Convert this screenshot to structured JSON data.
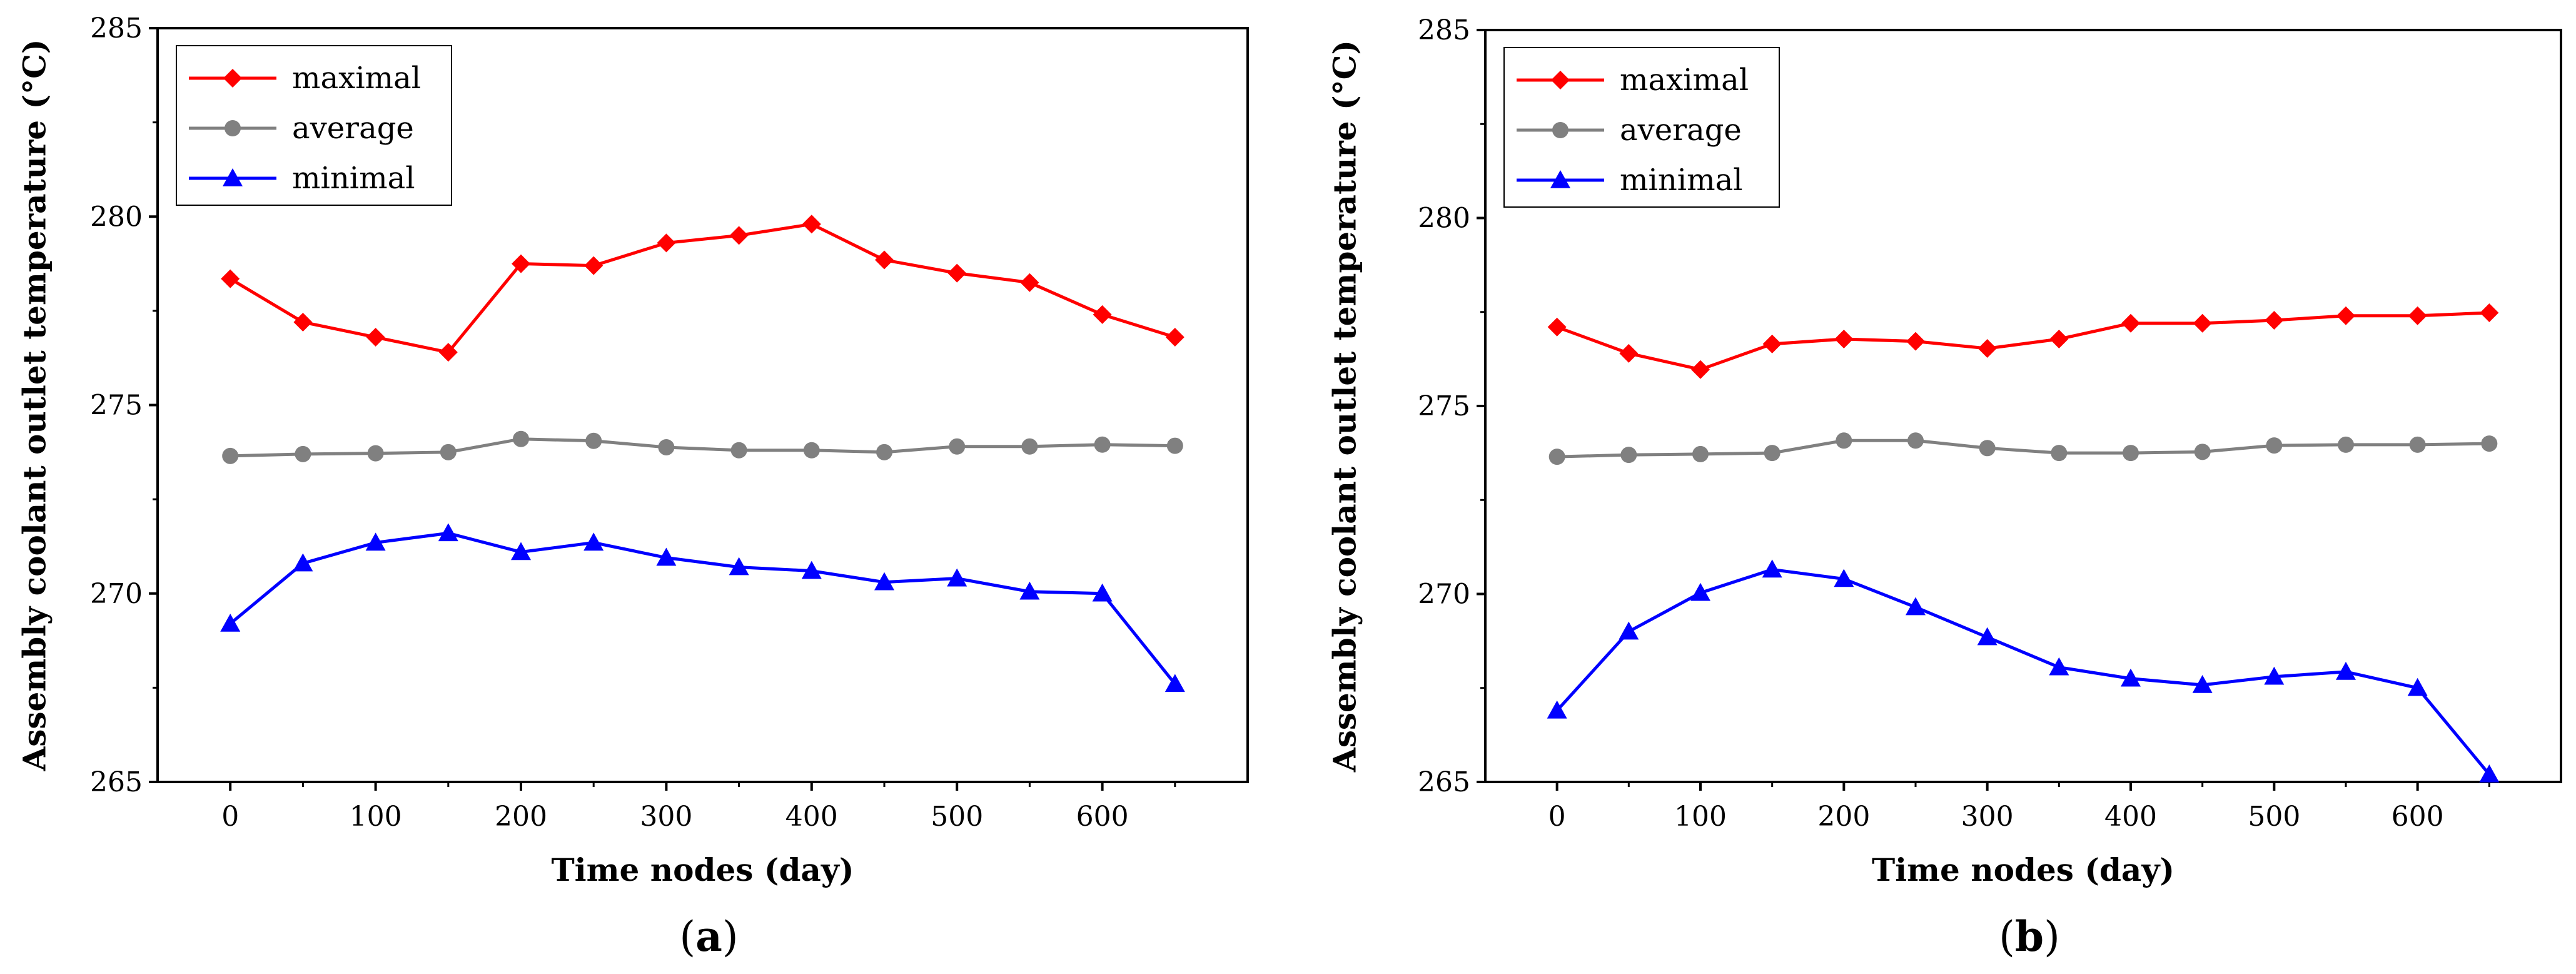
{
  "figure": {
    "panels": [
      "a",
      "b"
    ]
  },
  "chart_data": [
    {
      "type": "line",
      "panel_label": "a",
      "caption_open": "(",
      "caption_close": ")",
      "xlabel": "Time nodes (day)",
      "ylabel": "Assembly coolant outlet temperature (°C)",
      "xlim": [
        -50,
        700
      ],
      "ylim": [
        265,
        285
      ],
      "xticks": [
        0,
        100,
        200,
        300,
        400,
        500,
        600
      ],
      "yticks": [
        265,
        270,
        275,
        280,
        285
      ],
      "x": [
        0,
        50,
        100,
        150,
        200,
        250,
        300,
        350,
        400,
        450,
        500,
        550,
        600,
        650
      ],
      "legend_position": "top-left",
      "series": [
        {
          "name": "maximal",
          "color": "#ff0000",
          "marker": "diamond",
          "values": [
            278.35,
            277.2,
            276.8,
            276.4,
            278.75,
            278.7,
            279.3,
            279.5,
            279.8,
            278.85,
            278.5,
            278.25,
            277.4,
            276.8
          ]
        },
        {
          "name": "average",
          "color": "#808080",
          "marker": "circle",
          "values": [
            273.65,
            273.7,
            273.72,
            273.75,
            274.1,
            274.05,
            273.88,
            273.8,
            273.8,
            273.75,
            273.9,
            273.9,
            273.95,
            273.92
          ]
        },
        {
          "name": "minimal",
          "color": "#0000ff",
          "marker": "triangle",
          "values": [
            269.2,
            270.8,
            271.35,
            271.6,
            271.1,
            271.35,
            270.95,
            270.7,
            270.6,
            270.3,
            270.4,
            270.05,
            270.0,
            267.6
          ]
        }
      ]
    },
    {
      "type": "line",
      "panel_label": "b",
      "caption_open": "(",
      "caption_close": ")",
      "xlabel": "Time nodes (day)",
      "ylabel": "Assembly coolant outlet temperature (°C)",
      "xlim": [
        -50,
        700
      ],
      "ylim": [
        265,
        285
      ],
      "xticks": [
        0,
        100,
        200,
        300,
        400,
        500,
        600
      ],
      "yticks": [
        265,
        270,
        275,
        280,
        285
      ],
      "x": [
        0,
        50,
        100,
        150,
        200,
        250,
        300,
        350,
        400,
        450,
        500,
        550,
        600,
        650
      ],
      "legend_position": "top-left",
      "series": [
        {
          "name": "maximal",
          "color": "#ff0000",
          "marker": "diamond",
          "values": [
            277.1,
            276.4,
            275.97,
            276.65,
            276.78,
            276.72,
            276.53,
            276.78,
            277.2,
            277.2,
            277.28,
            277.4,
            277.4,
            277.48
          ]
        },
        {
          "name": "average",
          "color": "#808080",
          "marker": "circle",
          "values": [
            273.65,
            273.7,
            273.72,
            273.75,
            274.08,
            274.08,
            273.88,
            273.75,
            273.75,
            273.78,
            273.95,
            273.97,
            273.97,
            274.0
          ]
        },
        {
          "name": "minimal",
          "color": "#0000ff",
          "marker": "triangle",
          "values": [
            266.9,
            269.0,
            270.03,
            270.65,
            270.4,
            269.65,
            268.85,
            268.05,
            267.75,
            267.58,
            267.8,
            267.93,
            267.5,
            265.2
          ]
        }
      ]
    }
  ]
}
